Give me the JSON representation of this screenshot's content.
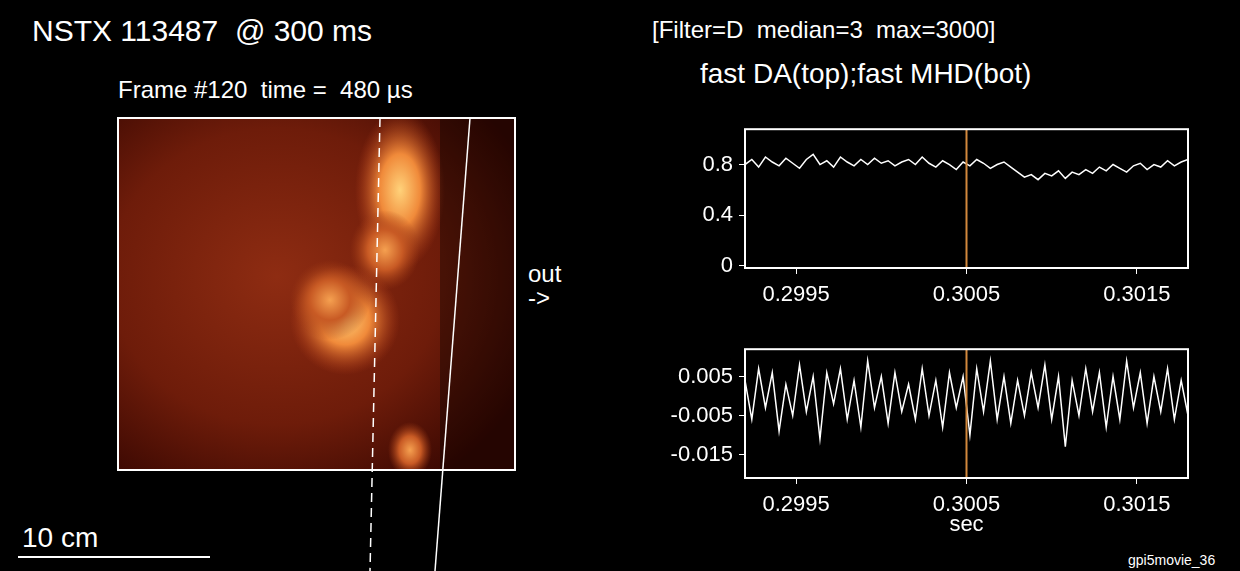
{
  "header": {
    "title": "NSTX 113487  @ 300 ms",
    "frame": "Frame #120  time =  480 µs",
    "filter": "[Filter=D  median=3  max=3000]",
    "plots_title": "fast DA(top);fast MHD(bot)",
    "movie": "gpi5movie_36"
  },
  "image_panel": {
    "direction_label": "out",
    "direction_arrow": "->",
    "scale_bar": "10 cm"
  },
  "chart_data": [
    {
      "type": "line",
      "color": "#ffffff",
      "grid": false,
      "vline": 0.3005,
      "x": [
        0.2992,
        0.29924,
        0.29928,
        0.29932,
        0.29936,
        0.2994,
        0.29944,
        0.29948,
        0.29952,
        0.29956,
        0.2996,
        0.29964,
        0.29968,
        0.29972,
        0.29976,
        0.2998,
        0.29984,
        0.29988,
        0.29992,
        0.29996,
        0.3,
        0.30004,
        0.30008,
        0.30012,
        0.30016,
        0.3002,
        0.30024,
        0.30028,
        0.30032,
        0.30036,
        0.3004,
        0.30044,
        0.30048,
        0.30052,
        0.30056,
        0.3006,
        0.30064,
        0.30068,
        0.30072,
        0.30076,
        0.3008,
        0.30084,
        0.30088,
        0.30092,
        0.30096,
        0.301,
        0.30104,
        0.30108,
        0.30112,
        0.30116,
        0.3012,
        0.30124,
        0.30128,
        0.30132,
        0.30136,
        0.3014,
        0.30144,
        0.30148,
        0.30152,
        0.30156,
        0.3016,
        0.30164,
        0.30168,
        0.30172,
        0.30176,
        0.3018
      ],
      "values": [
        0.8,
        0.84,
        0.78,
        0.86,
        0.82,
        0.79,
        0.85,
        0.81,
        0.77,
        0.84,
        0.88,
        0.8,
        0.83,
        0.78,
        0.86,
        0.82,
        0.79,
        0.84,
        0.8,
        0.85,
        0.81,
        0.83,
        0.79,
        0.82,
        0.84,
        0.8,
        0.86,
        0.81,
        0.78,
        0.83,
        0.8,
        0.76,
        0.82,
        0.79,
        0.84,
        0.81,
        0.77,
        0.8,
        0.82,
        0.78,
        0.74,
        0.7,
        0.72,
        0.68,
        0.73,
        0.71,
        0.75,
        0.69,
        0.74,
        0.72,
        0.76,
        0.73,
        0.78,
        0.75,
        0.8,
        0.77,
        0.74,
        0.79,
        0.81,
        0.76,
        0.8,
        0.78,
        0.83,
        0.79,
        0.82,
        0.84
      ],
      "xlim": [
        0.2992,
        0.3018
      ],
      "xticks": [
        0.2995,
        0.3005,
        0.3015
      ],
      "ylim": [
        -0.02,
        1.08
      ],
      "yticks": [
        0,
        0.4,
        0.8
      ]
    },
    {
      "type": "line",
      "color": "#ffffff",
      "grid": false,
      "vline": 0.3005,
      "x_label": "sec",
      "x": [
        0.2992,
        0.29924,
        0.29928,
        0.29932,
        0.29936,
        0.2994,
        0.29944,
        0.29948,
        0.29952,
        0.29956,
        0.2996,
        0.29964,
        0.29968,
        0.29972,
        0.29976,
        0.2998,
        0.29984,
        0.29988,
        0.29992,
        0.29996,
        0.3,
        0.30004,
        0.30008,
        0.30012,
        0.30016,
        0.3002,
        0.30024,
        0.30028,
        0.30032,
        0.30036,
        0.3004,
        0.30044,
        0.30048,
        0.30052,
        0.30056,
        0.3006,
        0.30064,
        0.30068,
        0.30072,
        0.30076,
        0.3008,
        0.30084,
        0.30088,
        0.30092,
        0.30096,
        0.301,
        0.30104,
        0.30108,
        0.30112,
        0.30116,
        0.3012,
        0.30124,
        0.30128,
        0.30132,
        0.30136,
        0.3014,
        0.30144,
        0.30148,
        0.30152,
        0.30156,
        0.3016,
        0.30164,
        0.30168,
        0.30172,
        0.30176,
        0.3018
      ],
      "values": [
        0.004,
        -0.006,
        0.007,
        -0.003,
        0.006,
        -0.009,
        0.003,
        -0.005,
        0.008,
        -0.004,
        0.005,
        -0.011,
        0.006,
        -0.002,
        0.007,
        -0.006,
        0.004,
        -0.008,
        0.009,
        -0.003,
        0.005,
        -0.007,
        0.006,
        -0.004,
        0.003,
        -0.006,
        0.007,
        -0.005,
        0.004,
        -0.008,
        0.006,
        -0.003,
        0.005,
        -0.01,
        0.007,
        -0.004,
        0.009,
        -0.006,
        0.005,
        -0.007,
        0.004,
        -0.005,
        0.006,
        -0.003,
        0.008,
        -0.006,
        0.005,
        -0.013,
        0.004,
        -0.005,
        0.007,
        -0.004,
        0.006,
        -0.008,
        0.005,
        -0.006,
        0.009,
        -0.003,
        0.006,
        -0.007,
        0.005,
        -0.004,
        0.007,
        -0.006,
        0.004,
        -0.005
      ],
      "xlim": [
        0.2992,
        0.3018
      ],
      "xticks": [
        0.2995,
        0.3005,
        0.3015
      ],
      "ylim": [
        -0.021,
        0.012
      ],
      "yticks": [
        0.005,
        -0.005,
        -0.015
      ]
    }
  ]
}
